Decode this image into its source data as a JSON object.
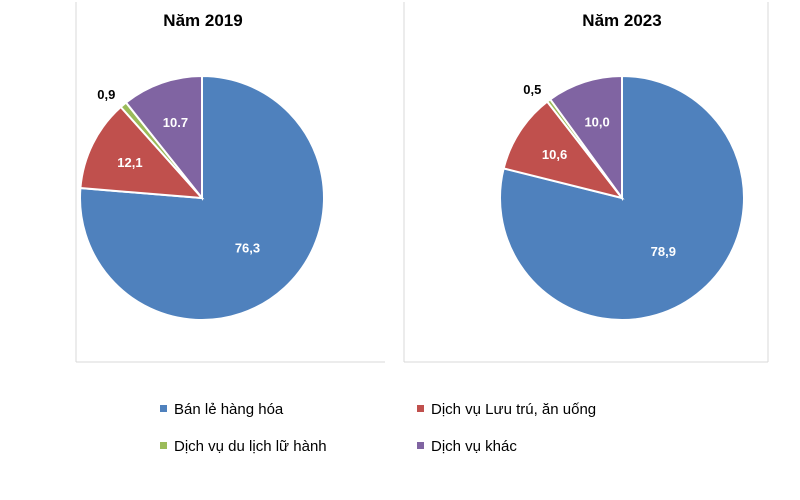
{
  "chart_data": [
    {
      "type": "pie",
      "title": "Năm 2019",
      "slices": [
        {
          "name": "Bán lẻ hàng hóa",
          "value": 76.3,
          "label": "76,3",
          "color": "#4F81BD"
        },
        {
          "name": "Dịch vụ Lưu trú, ăn uống",
          "value": 12.1,
          "label": "12,1",
          "color": "#C0504D"
        },
        {
          "name": "Dịch vụ du lịch lữ hành",
          "value": 0.9,
          "label": "0,9",
          "color": "#9BBB59"
        },
        {
          "name": "Dịch vụ khác",
          "value": 10.7,
          "label": "10.7",
          "color": "#8064A2"
        }
      ]
    },
    {
      "type": "pie",
      "title": "Năm 2023",
      "slices": [
        {
          "name": "Bán lẻ hàng hóa",
          "value": 78.9,
          "label": "78,9",
          "color": "#4F81BD"
        },
        {
          "name": "Dịch vụ Lưu trú, ăn uống",
          "value": 10.6,
          "label": "10,6",
          "color": "#C0504D"
        },
        {
          "name": "Dịch vụ du lịch lữ hành",
          "value": 0.5,
          "label": "0,5",
          "color": "#9BBB59"
        },
        {
          "name": "Dịch vụ khác",
          "value": 10.0,
          "label": "10,0",
          "color": "#8064A2"
        }
      ]
    }
  ],
  "legend": {
    "placement": "bottom",
    "items": [
      {
        "label": "Bán lẻ hàng hóa",
        "color": "#4F81BD"
      },
      {
        "label": "Dịch vụ Lưu trú, ăn uống",
        "color": "#C0504D"
      },
      {
        "label": "Dịch vụ du lịch lữ hành",
        "color": "#9BBB59"
      },
      {
        "label": "Dịch vụ khác",
        "color": "#8064A2"
      }
    ]
  }
}
